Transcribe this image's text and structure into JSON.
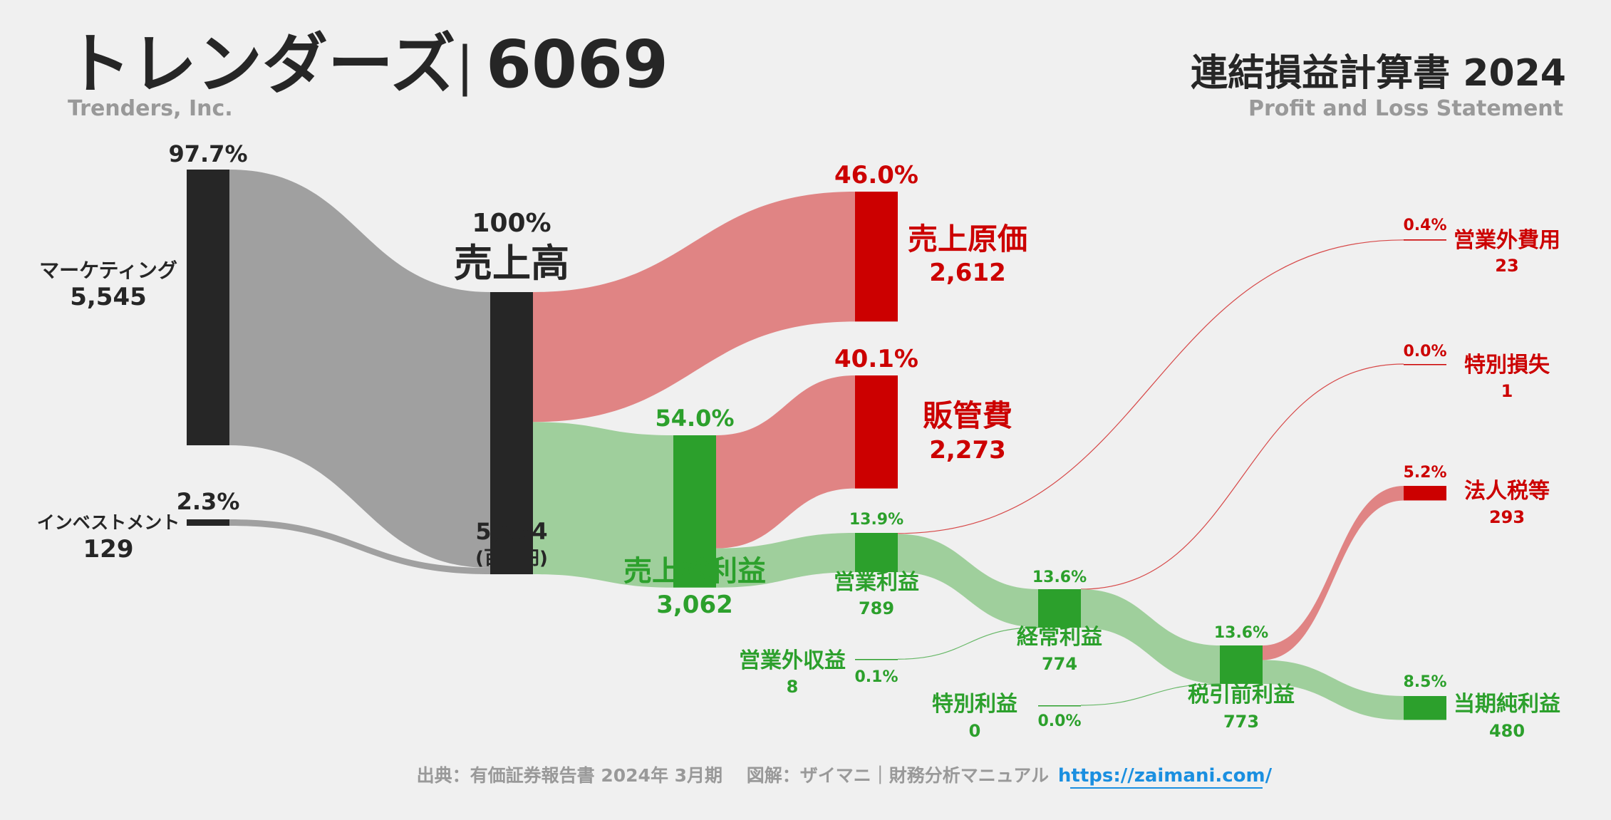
{
  "header": {
    "company_jp": "トレンダーズ",
    "separator": "|",
    "ticker": "6069",
    "company_en": "Trenders, Inc.",
    "statement_jp": "連結損益計算書 2024",
    "statement_en": "Profit and Loss Statement"
  },
  "footer": {
    "source": "出典：有価証券報告書 2024年 3月期　 図解：ザイマニ｜財務分析マニュアル",
    "url": "https://zaimani.com/"
  },
  "chart_data": {
    "type": "sankey",
    "unit": "(百万円)",
    "colors": {
      "neutral": "#262626",
      "neutral_flow": "#a0a0a0",
      "cost": "#cc0000",
      "cost_flow": "#e08484",
      "profit": "#2ca02c",
      "profit_flow": "#9fcf9c",
      "text_dark": "#262626",
      "text_gray": "#999999"
    },
    "nodes": [
      {
        "id": "marketing",
        "label": "マーケティング",
        "value": 5545,
        "value_label": "5,545",
        "pct": "97.7%",
        "kind": "neutral"
      },
      {
        "id": "investment",
        "label": "インベストメント",
        "value": 129,
        "value_label": "129",
        "pct": "2.3%",
        "kind": "neutral"
      },
      {
        "id": "revenue",
        "label": "売上高",
        "value": 5674,
        "value_label": "5,674",
        "pct": "100%",
        "kind": "neutral"
      },
      {
        "id": "cogs",
        "label": "売上原価",
        "value": 2612,
        "value_label": "2,612",
        "pct": "46.0%",
        "kind": "cost"
      },
      {
        "id": "gross",
        "label": "売上総利益",
        "value": 3062,
        "value_label": "3,062",
        "pct": "54.0%",
        "kind": "profit"
      },
      {
        "id": "sga",
        "label": "販管費",
        "value": 2273,
        "value_label": "2,273",
        "pct": "40.1%",
        "kind": "cost"
      },
      {
        "id": "op",
        "label": "営業利益",
        "value": 789,
        "value_label": "789",
        "pct": "13.9%",
        "kind": "profit"
      },
      {
        "id": "nonop_exp",
        "label": "営業外費用",
        "value": 23,
        "value_label": "23",
        "pct": "0.4%",
        "kind": "cost"
      },
      {
        "id": "nonop_inc",
        "label": "営業外収益",
        "value": 8,
        "value_label": "8",
        "pct": "0.1%",
        "kind": "profit"
      },
      {
        "id": "ordinary",
        "label": "経常利益",
        "value": 774,
        "value_label": "774",
        "pct": "13.6%",
        "kind": "profit"
      },
      {
        "id": "special_loss",
        "label": "特別損失",
        "value": 1,
        "value_label": "1",
        "pct": "0.0%",
        "kind": "cost"
      },
      {
        "id": "special_gain",
        "label": "特別利益",
        "value": 0,
        "value_label": "0",
        "pct": "0.0%",
        "kind": "profit"
      },
      {
        "id": "pretax",
        "label": "税引前利益",
        "value": 773,
        "value_label": "773",
        "pct": "13.6%",
        "kind": "profit"
      },
      {
        "id": "tax",
        "label": "法人税等",
        "value": 293,
        "value_label": "293",
        "pct": "5.2%",
        "kind": "cost"
      },
      {
        "id": "net",
        "label": "当期純利益",
        "value": 480,
        "value_label": "480",
        "pct": "8.5%",
        "kind": "profit"
      }
    ],
    "links": [
      {
        "source": "marketing",
        "target": "revenue",
        "value": 5545
      },
      {
        "source": "investment",
        "target": "revenue",
        "value": 129
      },
      {
        "source": "revenue",
        "target": "cogs",
        "value": 2612
      },
      {
        "source": "revenue",
        "target": "gross",
        "value": 3062
      },
      {
        "source": "gross",
        "target": "sga",
        "value": 2273
      },
      {
        "source": "gross",
        "target": "op",
        "value": 789
      },
      {
        "source": "op",
        "target": "nonop_exp",
        "value": 23
      },
      {
        "source": "op",
        "target": "ordinary",
        "value": 766
      },
      {
        "source": "nonop_inc",
        "target": "ordinary",
        "value": 8
      },
      {
        "source": "ordinary",
        "target": "special_loss",
        "value": 1
      },
      {
        "source": "ordinary",
        "target": "pretax",
        "value": 773
      },
      {
        "source": "special_gain",
        "target": "pretax",
        "value": 0
      },
      {
        "source": "pretax",
        "target": "tax",
        "value": 293
      },
      {
        "source": "pretax",
        "target": "net",
        "value": 480
      }
    ]
  }
}
